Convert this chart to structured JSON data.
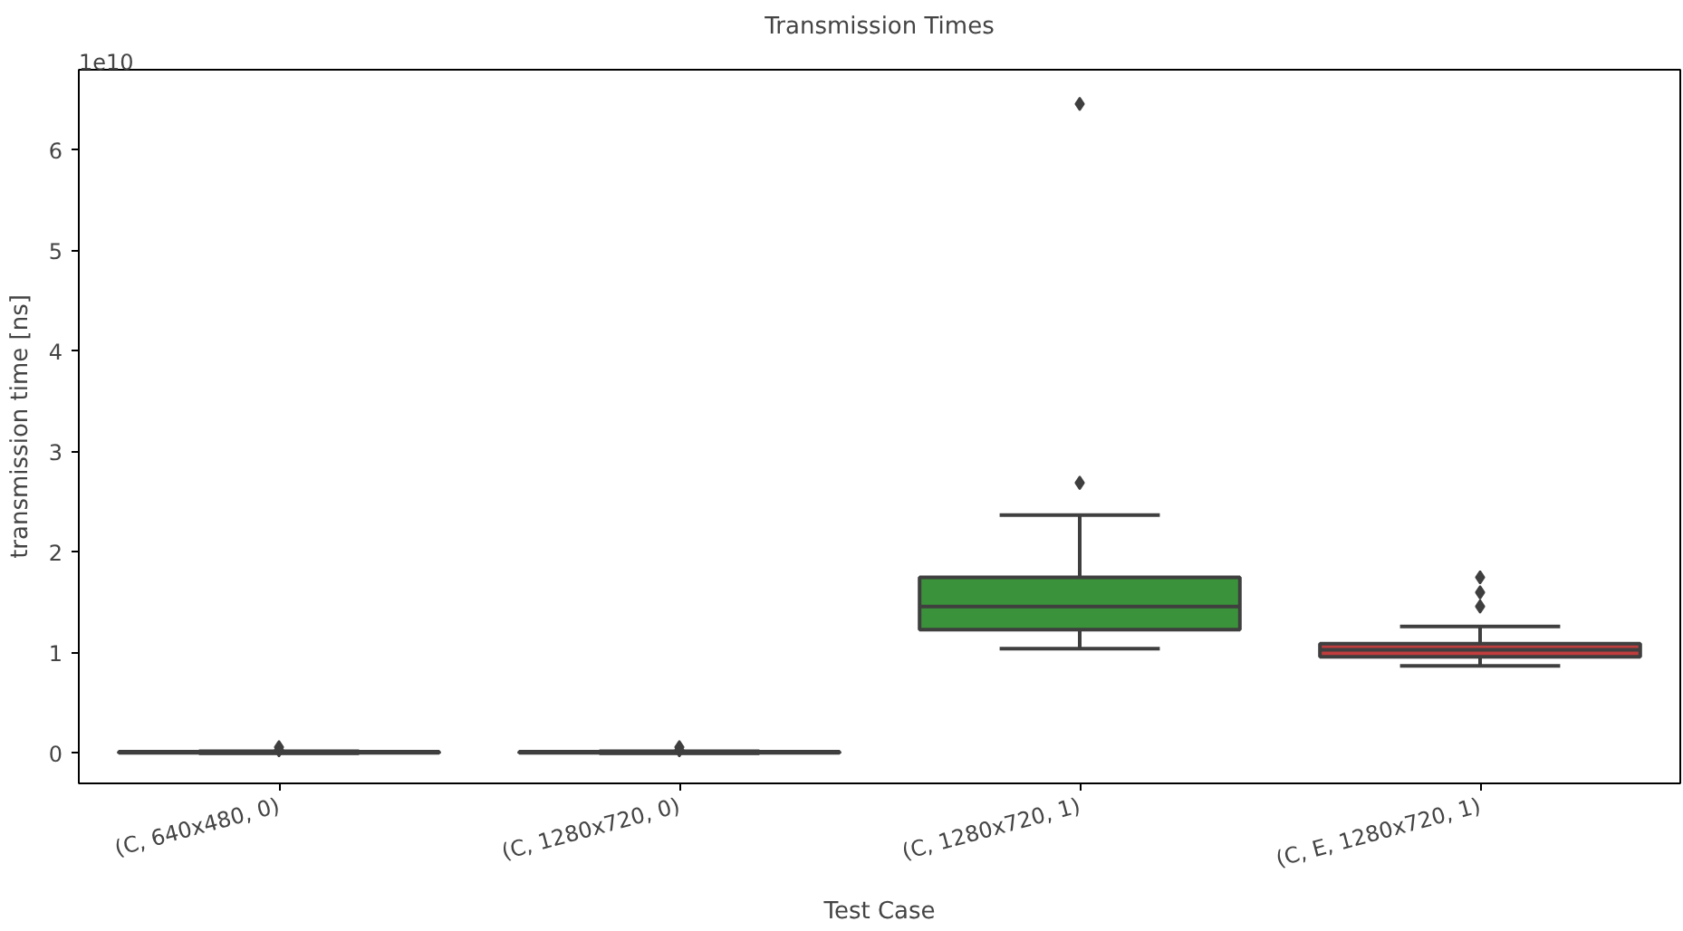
{
  "chart_data": {
    "type": "box",
    "title": "Transmission Times",
    "xlabel": "Test Case",
    "ylabel": "transmission time [ns]",
    "categories": [
      "(C, 640x480, 0)",
      "(C, 1280x720, 0)",
      "(C, 1280x720, 1)",
      "(C, E, 1280x720, 1)"
    ],
    "colors": [
      "#3274a1",
      "#e1812c",
      "#3a923a",
      "#c03d3e"
    ],
    "boxes": [
      {
        "low": 0,
        "q1": 0.005,
        "median": 0.01,
        "q3": 0.015,
        "high": 0.02,
        "outliers": [
          0.03,
          0.06
        ]
      },
      {
        "low": 0,
        "q1": 0.005,
        "median": 0.01,
        "q3": 0.015,
        "high": 0.02,
        "outliers": [
          0.03,
          0.06
        ]
      },
      {
        "low": 1.04,
        "q1": 1.23,
        "median": 1.46,
        "q3": 1.75,
        "high": 2.37,
        "outliers": [
          2.69,
          6.46
        ]
      },
      {
        "low": 0.87,
        "q1": 0.96,
        "median": 1.03,
        "q3": 1.09,
        "high": 1.26,
        "outliers": [
          1.46,
          1.6,
          1.75
        ]
      }
    ],
    "ylim": [
      -0.3,
      6.8
    ],
    "yticks": [
      0,
      1,
      2,
      3,
      4,
      5,
      6
    ],
    "annotations": [
      "1e10"
    ],
    "marker": "diamond",
    "grid": false
  }
}
